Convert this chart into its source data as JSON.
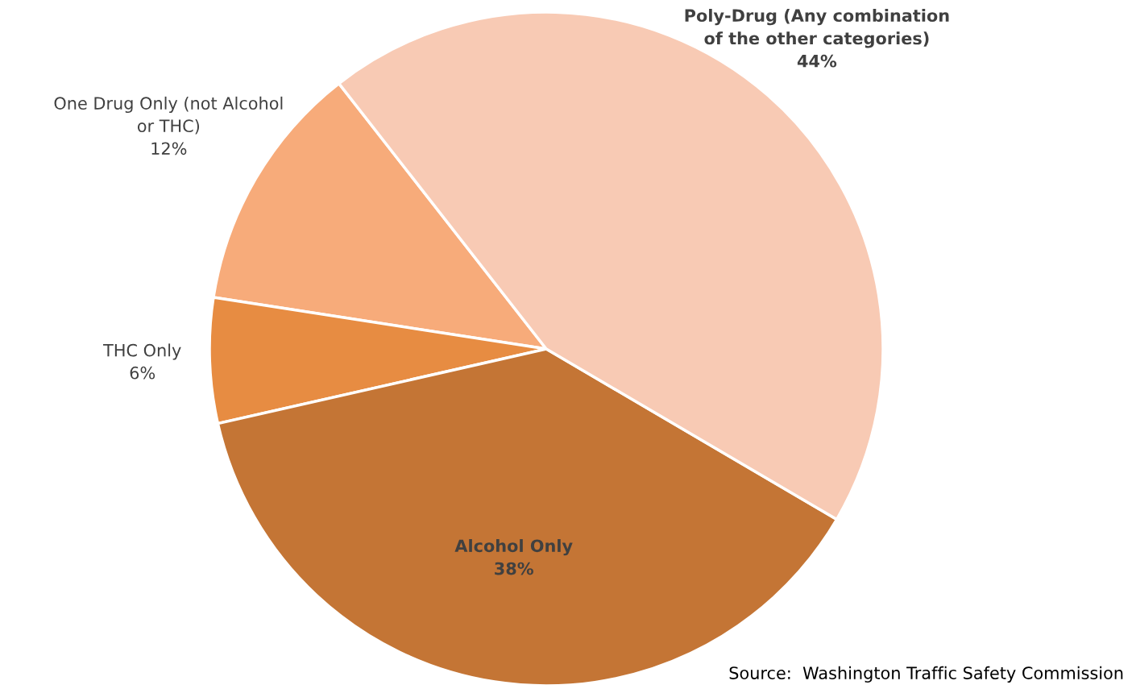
{
  "chart_data": {
    "type": "pie",
    "categories": [
      "One Drug Only (not Alcohol or THC)",
      "THC Only",
      "Alcohol Only",
      "Poly-Drug (Any combination of the other categories)"
    ],
    "values": [
      12,
      6,
      38,
      44
    ],
    "colors": [
      "#f7ab7a",
      "#e78c42",
      "#c47535",
      "#f8cab4"
    ],
    "value_labels": [
      "12%",
      "6%",
      "38%",
      "44%"
    ],
    "legend": false,
    "annotations": [
      "Source:  Washington Traffic Safety Commission"
    ]
  }
}
